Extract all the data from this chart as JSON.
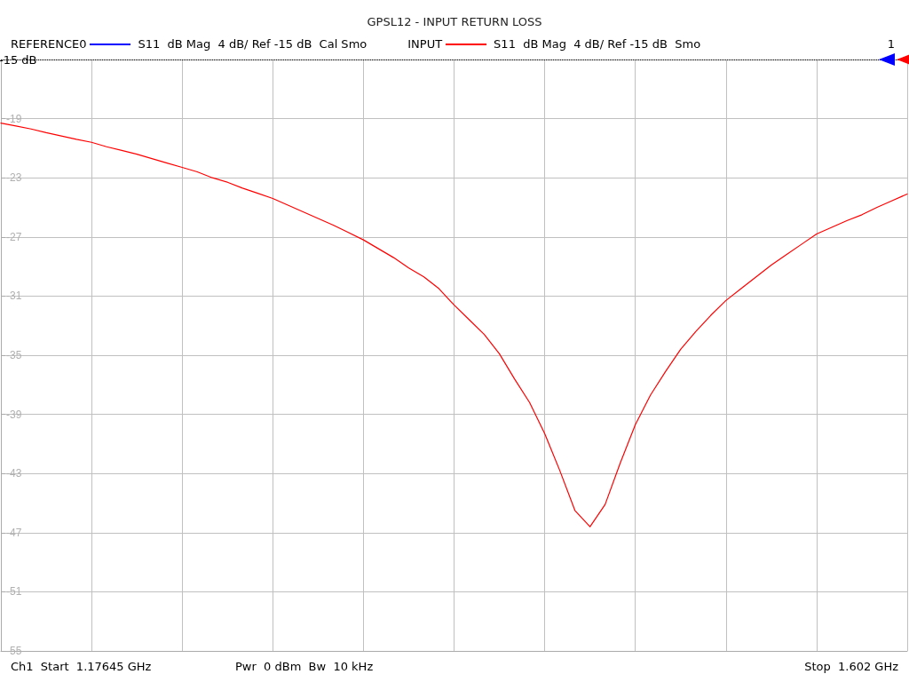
{
  "chart_data": {
    "type": "line",
    "title": "GPSL12 - INPUT RETURN LOSS",
    "categories": [
      null,
      null,
      null,
      null,
      null,
      null,
      null,
      null,
      null,
      null,
      null,
      null,
      null,
      null,
      null,
      null,
      null,
      null,
      null,
      null,
      null,
      null,
      null,
      null,
      null,
      null,
      null,
      null,
      null,
      null,
      null,
      null,
      null,
      null,
      null,
      null,
      null,
      null,
      null,
      null,
      null,
      null,
      null,
      null,
      null,
      null,
      null,
      null,
      null,
      null,
      null,
      null,
      null,
      null,
      null,
      null,
      null,
      null,
      null,
      null,
      null
    ],
    "series": [
      {
        "name": "REFERENCE0",
        "color": "#0000ff",
        "values": [
          null,
          null,
          null,
          null,
          null,
          null,
          null,
          null,
          null,
          null,
          null,
          null,
          null,
          null,
          null,
          null,
          null,
          null,
          null,
          null,
          null,
          null,
          null,
          null,
          null,
          null,
          null,
          null,
          null,
          null,
          null,
          null,
          null,
          null,
          null,
          null,
          null,
          null,
          null,
          null,
          null,
          null,
          null,
          null,
          null,
          null,
          null,
          null,
          null,
          null,
          null,
          null,
          null,
          null,
          null,
          null,
          null,
          null,
          null,
          null,
          null
        ]
      },
      {
        "name": "INPUT",
        "color": "#ff0000",
        "values": [
          -19.3,
          -19.5,
          -19.7,
          -19.95,
          -20.17,
          -20.4,
          -20.6,
          -20.9,
          -21.15,
          -21.4,
          -21.7,
          -22.0,
          -22.3,
          -22.6,
          -23.0,
          -23.3,
          -23.7,
          -24.05,
          -24.4,
          -24.85,
          -25.3,
          -25.75,
          -26.2,
          -26.7,
          -27.2,
          -27.8,
          -28.4,
          -29.1,
          -29.7,
          -30.5,
          -31.6,
          -32.6,
          -33.6,
          -34.9,
          -36.6,
          -38.2,
          -40.3,
          -42.8,
          -45.5,
          -46.6,
          -45.1,
          -42.3,
          -39.7,
          -37.7,
          -36.1,
          -34.6,
          -33.4,
          -32.3,
          -31.3,
          -30.5,
          -29.7,
          -28.9,
          -28.2,
          -27.5,
          -26.8,
          -26.35,
          -25.9,
          -25.5,
          -25.0,
          -24.55,
          -24.1
        ]
      }
    ],
    "ylim": [
      -55,
      -15
    ],
    "yticks": [
      {
        "value": -15,
        "label": null
      },
      -19,
      -23,
      -27,
      -31,
      -35,
      -39,
      -43,
      -47,
      -51,
      -55
    ],
    "tick_labels": "y",
    "grid": true,
    "legend": "top left",
    "marker": "none",
    "line_style": "solid",
    "ref_lines": [
      {
        "axis": "y",
        "value": -15,
        "label": "-15 dB",
        "color": "#000000",
        "line_style": "dotted"
      }
    ],
    "annotations": [
      "S11  dB Mag  4 dB/ Ref -15 dB  Cal Smo",
      "S11  dB Mag  4 dB/ Ref -15 dB  Smo",
      "1",
      "Ch1  Start  1.17645 GHz",
      "Pwr  0 dBm  Bw  10 kHz",
      "Stop  1.602 GHz"
    ]
  }
}
